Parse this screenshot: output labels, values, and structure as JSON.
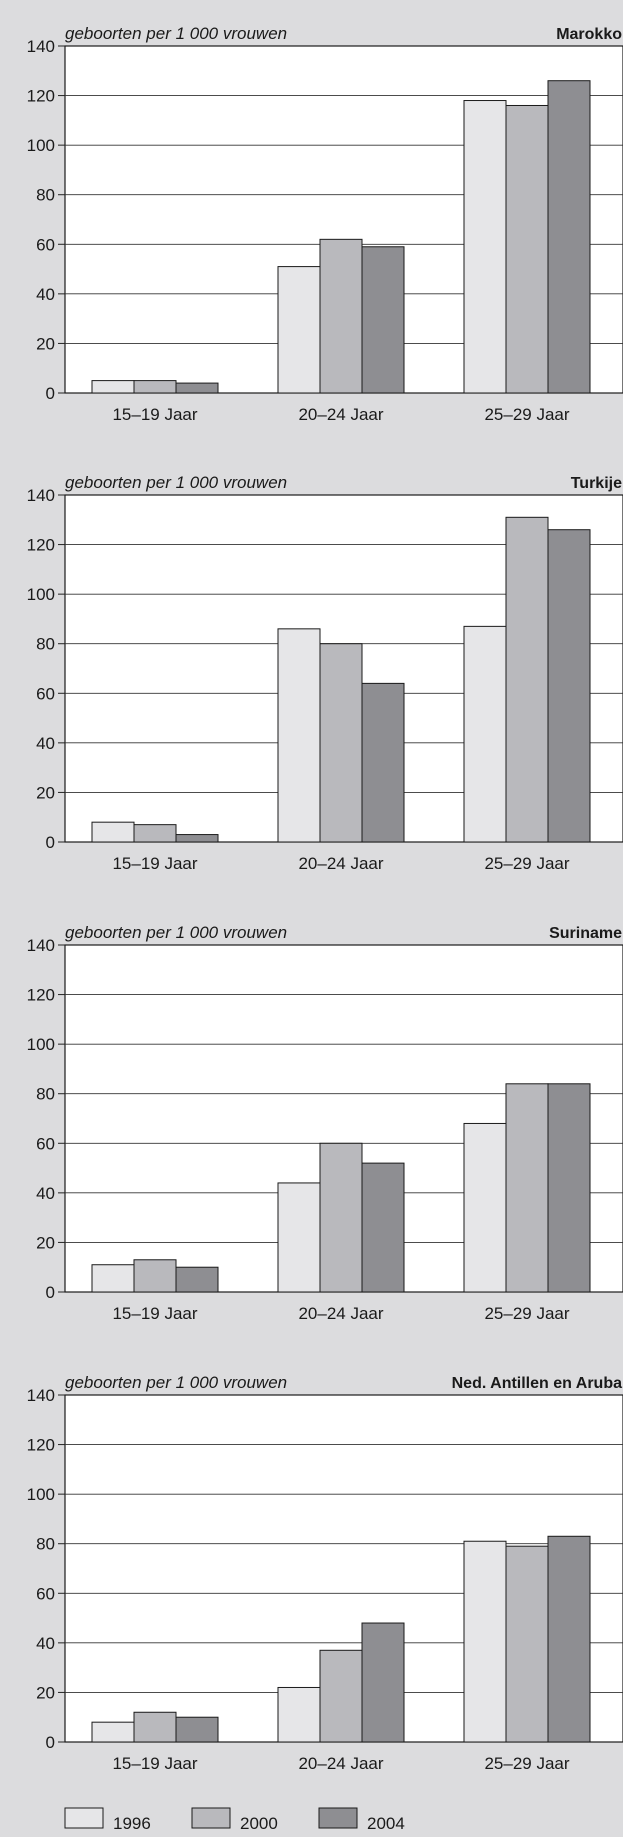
{
  "chart_data": [
    {
      "type": "bar",
      "title": "Marokko",
      "ylabel": "geboorten per 1 000 vrouwen",
      "categories": [
        "15–19 Jaar",
        "20–24 Jaar",
        "25–29 Jaar"
      ],
      "ylim": [
        0,
        140
      ],
      "yticks": [
        "0",
        "20",
        "40",
        "60",
        "80",
        "100",
        "120",
        "140"
      ],
      "series": [
        {
          "name": "1996",
          "values": [
            5,
            51,
            118
          ]
        },
        {
          "name": "2000",
          "values": [
            5,
            62,
            116
          ]
        },
        {
          "name": "2004",
          "values": [
            4,
            59,
            126
          ]
        }
      ]
    },
    {
      "type": "bar",
      "title": "Turkije",
      "ylabel": "geboorten per 1 000 vrouwen",
      "categories": [
        "15–19 Jaar",
        "20–24 Jaar",
        "25–29 Jaar"
      ],
      "ylim": [
        0,
        140
      ],
      "yticks": [
        "0",
        "20",
        "40",
        "60",
        "80",
        "100",
        "120",
        "140"
      ],
      "series": [
        {
          "name": "1996",
          "values": [
            8,
            86,
            87
          ]
        },
        {
          "name": "2000",
          "values": [
            7,
            80,
            131
          ]
        },
        {
          "name": "2004",
          "values": [
            3,
            64,
            126
          ]
        }
      ]
    },
    {
      "type": "bar",
      "title": "Suriname",
      "ylabel": "geboorten per 1 000 vrouwen",
      "categories": [
        "15–19 Jaar",
        "20–24 Jaar",
        "25–29 Jaar"
      ],
      "ylim": [
        0,
        140
      ],
      "yticks": [
        "0",
        "20",
        "40",
        "60",
        "80",
        "100",
        "120",
        "140"
      ],
      "series": [
        {
          "name": "1996",
          "values": [
            11,
            44,
            68
          ]
        },
        {
          "name": "2000",
          "values": [
            13,
            60,
            84
          ]
        },
        {
          "name": "2004",
          "values": [
            10,
            52,
            84
          ]
        }
      ]
    },
    {
      "type": "bar",
      "title": "Ned. Antillen en Aruba",
      "ylabel": "geboorten per 1 000 vrouwen",
      "categories": [
        "15–19 Jaar",
        "20–24 Jaar",
        "25–29 Jaar"
      ],
      "ylim": [
        0,
        140
      ],
      "yticks": [
        "0",
        "20",
        "40",
        "60",
        "80",
        "100",
        "120",
        "140"
      ],
      "series": [
        {
          "name": "1996",
          "values": [
            8,
            22,
            81
          ]
        },
        {
          "name": "2000",
          "values": [
            12,
            37,
            79
          ]
        },
        {
          "name": "2004",
          "values": [
            10,
            48,
            83
          ]
        }
      ]
    }
  ],
  "legend": {
    "placement": "bottom",
    "items": [
      {
        "label": "1996",
        "color": "#e6e6e8"
      },
      {
        "label": "2000",
        "color": "#b9b9bd"
      },
      {
        "label": "2004",
        "color": "#8e8e92"
      }
    ]
  },
  "colors": {
    "background": "#dcdcde",
    "plot_background": "#ffffff",
    "bar_stroke": "#1a1a1a",
    "series": [
      "#e6e6e8",
      "#b9b9bd",
      "#8e8e92"
    ]
  }
}
